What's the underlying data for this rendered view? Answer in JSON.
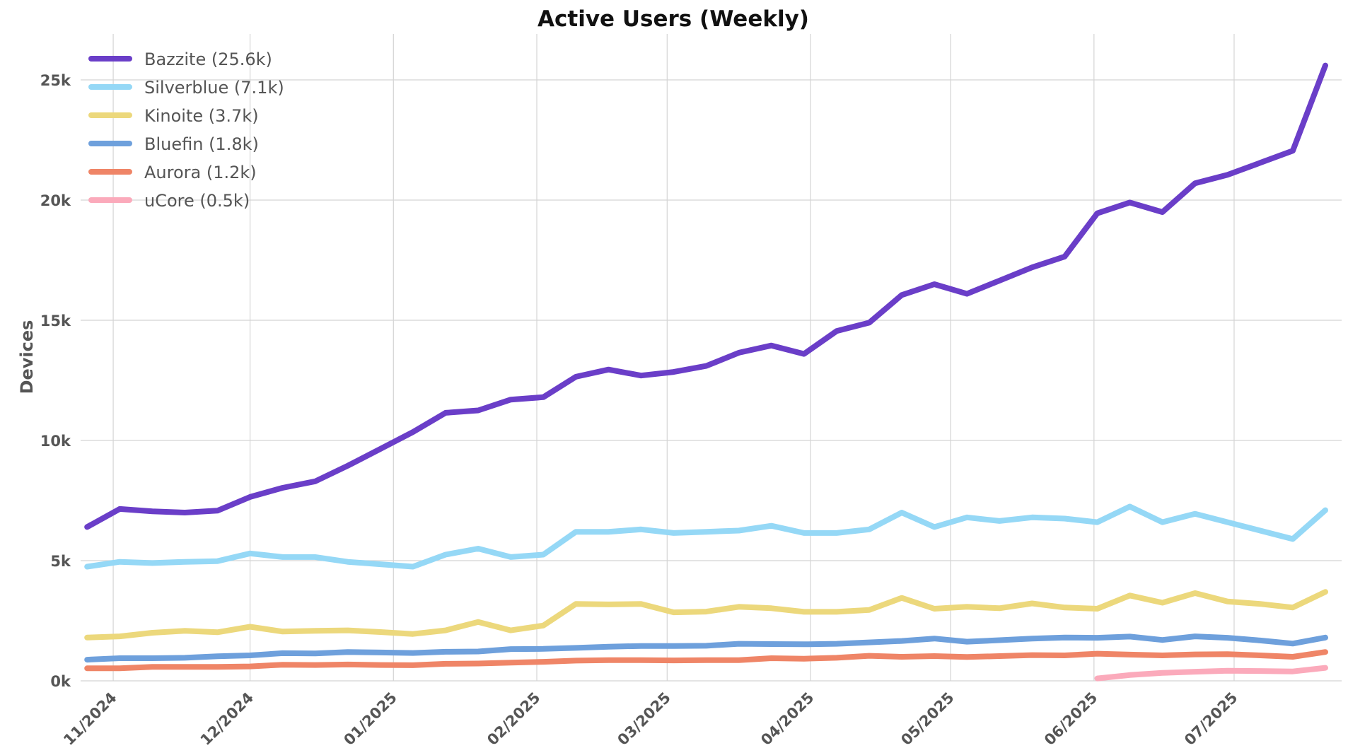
{
  "chart_data": {
    "type": "line",
    "title": "Active Users (Weekly)",
    "xlabel": "",
    "ylabel": "Devices",
    "ylim": [
      0,
      27000
    ],
    "y_ticks": [
      {
        "value": 0,
        "label": "0k"
      },
      {
        "value": 5000,
        "label": "5k"
      },
      {
        "value": 10000,
        "label": "10k"
      },
      {
        "value": 15000,
        "label": "15k"
      },
      {
        "value": 20000,
        "label": "20k"
      },
      {
        "value": 25000,
        "label": "25k"
      }
    ],
    "x_ticks": [
      {
        "week_index": 0.8,
        "label": "11/2024"
      },
      {
        "week_index": 5.0,
        "label": "12/2024"
      },
      {
        "week_index": 9.4,
        "label": "01/2025"
      },
      {
        "week_index": 13.8,
        "label": "02/2025"
      },
      {
        "week_index": 17.8,
        "label": "03/2025"
      },
      {
        "week_index": 22.2,
        "label": "04/2025"
      },
      {
        "week_index": 26.5,
        "label": "05/2025"
      },
      {
        "week_index": 30.9,
        "label": "06/2025"
      },
      {
        "week_index": 35.2,
        "label": "07/2025"
      }
    ],
    "x_range": [
      -0.2,
      38.5
    ],
    "grid": true,
    "legend_position": "top-left",
    "series": [
      {
        "name": "Bazzite (25.6k)",
        "color": "#6a3ec8",
        "start_index": 0,
        "values": [
          6400,
          7150,
          7050,
          7000,
          7080,
          7650,
          8030,
          8300,
          8950,
          9650,
          10350,
          11150,
          11250,
          11700,
          11800,
          12650,
          12950,
          12700,
          12850,
          13100,
          13650,
          13950,
          13600,
          14550,
          14900,
          16050,
          16500,
          16100,
          16650,
          17200,
          17650,
          19450,
          19900,
          19500,
          20700,
          21050,
          21550,
          22050,
          25600
        ]
      },
      {
        "name": "Silverblue (7.1k)",
        "color": "#95d8f6",
        "start_index": 0,
        "values": [
          4750,
          4950,
          4900,
          4950,
          4980,
          5300,
          5150,
          5150,
          4950,
          4850,
          4750,
          5250,
          5500,
          5150,
          5250,
          6200,
          6200,
          6300,
          6150,
          6200,
          6250,
          6450,
          6150,
          6150,
          6300,
          7000,
          6400,
          6800,
          6650,
          6800,
          6750,
          6600,
          7250,
          6600,
          6950,
          6600,
          6250,
          5900,
          7100
        ]
      },
      {
        "name": "Kinoite (3.7k)",
        "color": "#ecd87c",
        "start_index": 0,
        "values": [
          1800,
          1850,
          2000,
          2080,
          2020,
          2250,
          2050,
          2080,
          2100,
          2030,
          1950,
          2100,
          2450,
          2100,
          2300,
          3200,
          3180,
          3200,
          2850,
          2880,
          3080,
          3020,
          2870,
          2870,
          2950,
          3450,
          3000,
          3080,
          3020,
          3220,
          3050,
          3000,
          3550,
          3250,
          3650,
          3300,
          3200,
          3050,
          3700
        ]
      },
      {
        "name": "Bluefin (1.8k)",
        "color": "#6ea0dc",
        "start_index": 0,
        "values": [
          880,
          940,
          940,
          960,
          1020,
          1060,
          1150,
          1140,
          1200,
          1180,
          1160,
          1210,
          1220,
          1320,
          1330,
          1370,
          1420,
          1450,
          1450,
          1460,
          1540,
          1530,
          1520,
          1540,
          1600,
          1660,
          1760,
          1630,
          1690,
          1760,
          1800,
          1790,
          1840,
          1700,
          1850,
          1790,
          1680,
          1550,
          1800
        ]
      },
      {
        "name": "Aurora (1.2k)",
        "color": "#ef8567",
        "start_index": 0,
        "values": [
          520,
          520,
          580,
          580,
          580,
          600,
          670,
          660,
          680,
          660,
          650,
          710,
          720,
          760,
          790,
          840,
          860,
          860,
          850,
          860,
          860,
          940,
          920,
          960,
          1040,
          1000,
          1030,
          990,
          1030,
          1070,
          1060,
          1130,
          1090,
          1060,
          1100,
          1110,
          1060,
          1000,
          1200
        ]
      },
      {
        "name": "uCore (0.5k)",
        "color": "#fbaabb",
        "start_index": 31,
        "values": [
          100,
          240,
          330,
          380,
          420,
          410,
          390,
          540
        ]
      }
    ]
  }
}
